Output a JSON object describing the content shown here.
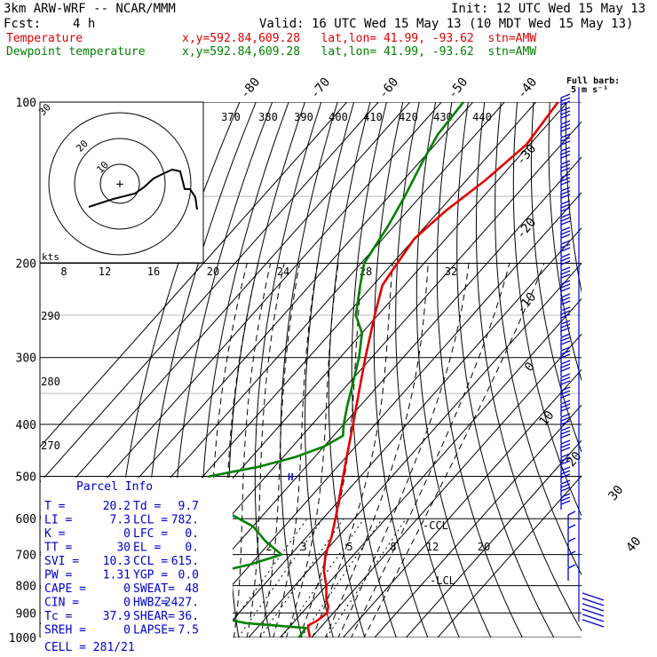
{
  "header": {
    "model": "3km ARW-WRF -- NCAR/MMM",
    "init": "Init: 12 UTC Wed 15 May 13",
    "fcst_label": "Fcst:",
    "fcst_value": "4 h",
    "valid": "Valid: 16 UTC Wed 15 May 13 (10 MDT Wed 15 May 13)",
    "temp_label": "Temperature",
    "temp_loc": "x,y=592.84,609.28   lat,lon= 41.99, -93.62  stn=AMW",
    "dew_label": "Dewpoint temperature",
    "dew_loc": "x,y=592.84,609.28   lat,lon= 41.99, -93.62  stn=AMW"
  },
  "colors": {
    "temperature": "#e00000",
    "dewpoint": "#008000",
    "wind": "#0000cc",
    "parcel": "#0000cc"
  },
  "chart_data": {
    "type": "line",
    "title": "",
    "ylabel": "",
    "xlabel": "",
    "pressure_levels": [
      100,
      200,
      300,
      400,
      500,
      600,
      700,
      800,
      900,
      1000
    ],
    "isotherm_labels": [
      "-80",
      "-70",
      "-60",
      "-50",
      "-40",
      "-30",
      "-20",
      "-10",
      "0",
      "10",
      "20",
      "30",
      "40"
    ],
    "theta_labels": [
      "370",
      "380",
      "390",
      "400",
      "410",
      "420",
      "430",
      "440",
      "290",
      "280",
      "270"
    ],
    "mixing_ratio_labels": [
      "2",
      "3",
      "5",
      "8",
      "12",
      "20"
    ],
    "hodograph": {
      "unit_label": "kts",
      "tick_labels": [
        "8",
        "12",
        "16",
        "20",
        "24",
        "28",
        "32"
      ],
      "ring_labels": [
        "10",
        "20",
        "30"
      ]
    },
    "wind_key": {
      "line1": "Full barb:",
      "line2": "5 m s⁻¹"
    },
    "annotations": {
      "ccl": "CCL",
      "lcl": "LCL",
      "el_mark": "H"
    },
    "series": [
      {
        "name": "Temperature",
        "values": [
          [
            1000,
            19.5
          ],
          [
            970,
            17
          ],
          [
            950,
            15.5
          ],
          [
            930,
            17
          ],
          [
            900,
            18
          ],
          [
            875,
            16.5
          ],
          [
            850,
            14
          ],
          [
            800,
            10
          ],
          [
            750,
            5
          ],
          [
            700,
            1
          ],
          [
            650,
            -2
          ],
          [
            600,
            -6
          ],
          [
            550,
            -10.5
          ],
          [
            500,
            -15.5
          ],
          [
            450,
            -21
          ],
          [
            400,
            -27
          ],
          [
            350,
            -34
          ],
          [
            300,
            -42
          ],
          [
            250,
            -51
          ],
          [
            220,
            -57
          ],
          [
            200,
            -58.5
          ],
          [
            180,
            -60
          ],
          [
            160,
            -58
          ],
          [
            140,
            -54
          ],
          [
            120,
            -51
          ],
          [
            100,
            -53
          ]
        ]
      },
      {
        "name": "Dewpoint temperature",
        "values": [
          [
            1000,
            16
          ],
          [
            960,
            15.5
          ],
          [
            940,
            -5
          ],
          [
            925,
            -12
          ],
          [
            900,
            -22
          ],
          [
            875,
            -32
          ],
          [
            850,
            -40
          ],
          [
            820,
            -45
          ],
          [
            800,
            -42
          ],
          [
            760,
            -30
          ],
          [
            730,
            -20
          ],
          [
            700,
            -13
          ],
          [
            660,
            -22
          ],
          [
            620,
            -30
          ],
          [
            590,
            -40
          ],
          [
            560,
            -48
          ],
          [
            530,
            -55
          ],
          [
            500,
            -58
          ],
          [
            480,
            -45
          ],
          [
            460,
            -36
          ],
          [
            440,
            -30
          ],
          [
            420,
            -27
          ],
          [
            400,
            -30
          ],
          [
            370,
            -34
          ],
          [
            340,
            -38
          ],
          [
            300,
            -44
          ],
          [
            270,
            -50
          ],
          [
            250,
            -57
          ],
          [
            220,
            -64
          ],
          [
            200,
            -69
          ],
          [
            170,
            -72
          ],
          [
            150,
            -75
          ],
          [
            130,
            -79
          ],
          [
            115,
            -82
          ],
          [
            100,
            -83
          ]
        ]
      }
    ],
    "parcel_info": {
      "title": "Parcel Info",
      "rows": [
        [
          "T  =",
          "20.2",
          "Td =",
          "9.7"
        ],
        [
          "LI =",
          "7.3",
          "LCL =",
          "782."
        ],
        [
          "K  =",
          "0",
          "LFC =",
          "0."
        ],
        [
          "TT =",
          "30",
          "EL  =",
          "0."
        ],
        [
          "SVI =",
          "10.3",
          "CCL =",
          "615."
        ],
        [
          "PW =",
          "1.31",
          "YGP =",
          "0.0"
        ],
        [
          "CAPE =",
          "0",
          "SWEAT=",
          "48"
        ],
        [
          "CIN =",
          "0",
          "HWBZ=",
          "2427."
        ],
        [
          "Tc =",
          "37.9",
          "SHEAR=",
          "36."
        ],
        [
          "SREH =",
          "0",
          "LAPSE=",
          "7.5"
        ]
      ],
      "cell": "CELL = 281/21"
    }
  }
}
